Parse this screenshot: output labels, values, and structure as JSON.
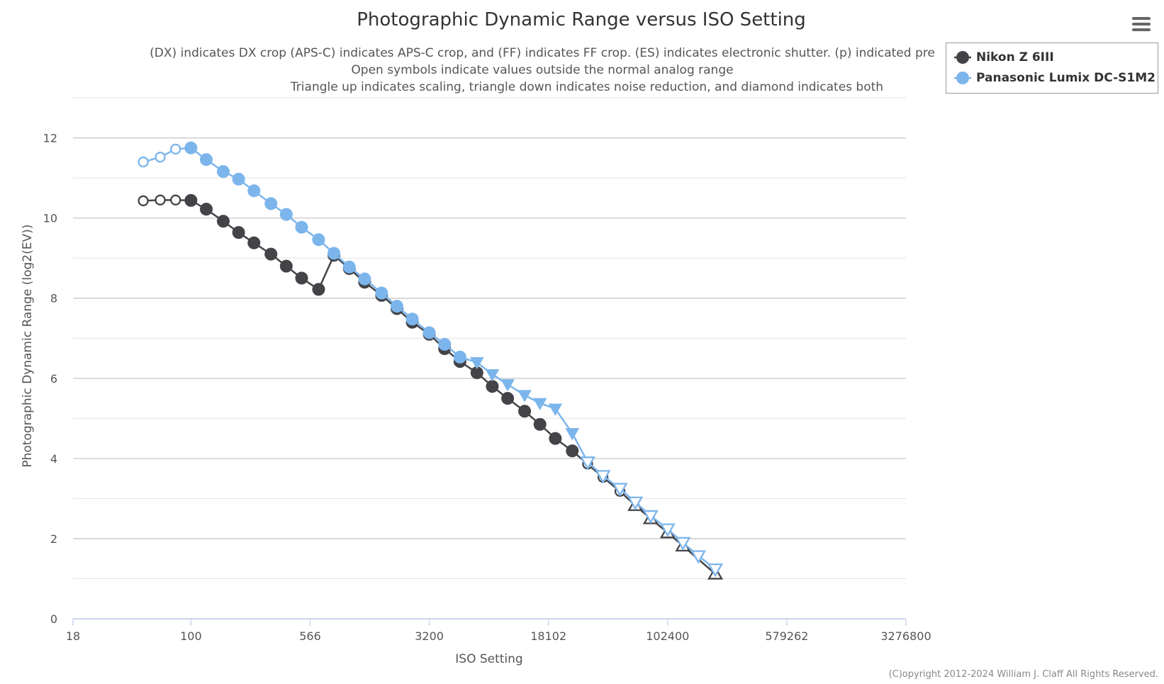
{
  "chart_data": {
    "type": "line",
    "title": "Photographic Dynamic Range versus ISO Setting",
    "subtitle_lines": [
      "(DX) indicates DX crop (APS-C) indicates APS-C crop, and (FF) indicates FF crop. (ES) indicates electronic shutter. (p) indicated pre",
      "Open symbols indicate values outside the normal analog range",
      "Triangle up indicates scaling, triangle down indicates noise reduction, and diamond indicates both"
    ],
    "xlabel": "ISO Setting",
    "ylabel": "Photographic Dynamic Range (log2(EV))",
    "x_scale": "log",
    "xlim": [
      18,
      3276800
    ],
    "x_ticks": [
      18,
      100,
      566,
      3200,
      18102,
      102400,
      579262,
      3276800
    ],
    "x_tick_labels": [
      "18",
      "100",
      "566",
      "3200",
      "18102",
      "102400",
      "579262",
      "3276800"
    ],
    "ylim": [
      0,
      13
    ],
    "y_ticks": [
      0,
      2,
      4,
      6,
      8,
      10,
      12
    ],
    "grid": true,
    "legend_position": "top-right",
    "series": [
      {
        "name": "Nikon Z 6III",
        "color": "#434348",
        "points": [
          {
            "x": 50,
            "y": 10.43,
            "m": "open"
          },
          {
            "x": 64,
            "y": 10.45,
            "m": "open"
          },
          {
            "x": 80,
            "y": 10.45,
            "m": "open"
          },
          {
            "x": 100,
            "y": 10.44,
            "m": "dot"
          },
          {
            "x": 125,
            "y": 10.22,
            "m": "dot"
          },
          {
            "x": 160,
            "y": 9.92,
            "m": "dot"
          },
          {
            "x": 200,
            "y": 9.64,
            "m": "dot"
          },
          {
            "x": 250,
            "y": 9.38,
            "m": "dot"
          },
          {
            "x": 320,
            "y": 9.1,
            "m": "dot"
          },
          {
            "x": 400,
            "y": 8.8,
            "m": "dot"
          },
          {
            "x": 500,
            "y": 8.5,
            "m": "dot"
          },
          {
            "x": 640,
            "y": 8.22,
            "m": "dot"
          },
          {
            "x": 800,
            "y": 9.07,
            "m": "dot"
          },
          {
            "x": 1000,
            "y": 8.74,
            "m": "dot"
          },
          {
            "x": 1250,
            "y": 8.4,
            "m": "dot"
          },
          {
            "x": 1600,
            "y": 8.07,
            "m": "dot"
          },
          {
            "x": 2000,
            "y": 7.74,
            "m": "dot"
          },
          {
            "x": 2500,
            "y": 7.4,
            "m": "dot"
          },
          {
            "x": 3200,
            "y": 7.1,
            "m": "dot"
          },
          {
            "x": 4000,
            "y": 6.74,
            "m": "dot"
          },
          {
            "x": 5000,
            "y": 6.42,
            "m": "dot"
          },
          {
            "x": 6400,
            "y": 6.14,
            "m": "dot"
          },
          {
            "x": 8000,
            "y": 5.8,
            "m": "dot"
          },
          {
            "x": 10000,
            "y": 5.5,
            "m": "dot"
          },
          {
            "x": 12800,
            "y": 5.18,
            "m": "dot"
          },
          {
            "x": 16000,
            "y": 4.85,
            "m": "dot"
          },
          {
            "x": 20000,
            "y": 4.5,
            "m": "dot"
          },
          {
            "x": 25600,
            "y": 4.19,
            "m": "dot"
          },
          {
            "x": 32000,
            "y": 3.86,
            "m": "open"
          },
          {
            "x": 40000,
            "y": 3.53,
            "m": "open"
          },
          {
            "x": 51200,
            "y": 3.18,
            "m": "open"
          },
          {
            "x": 64000,
            "y": 2.83,
            "m": "open-tri-up"
          },
          {
            "x": 80000,
            "y": 2.5,
            "m": "open-tri-up"
          },
          {
            "x": 102400,
            "y": 2.15,
            "m": "open-tri-up"
          },
          {
            "x": 128000,
            "y": 1.82,
            "m": "open-tri-up"
          },
          {
            "x": 204800,
            "y": 1.12,
            "m": "open-tri-up"
          }
        ]
      },
      {
        "name": "Panasonic Lumix DC-S1M2",
        "color": "#7cb5ec",
        "points": [
          {
            "x": 50,
            "y": 11.4,
            "m": "open"
          },
          {
            "x": 64,
            "y": 11.52,
            "m": "open"
          },
          {
            "x": 80,
            "y": 11.72,
            "m": "open"
          },
          {
            "x": 100,
            "y": 11.75,
            "m": "dot"
          },
          {
            "x": 125,
            "y": 11.46,
            "m": "dot"
          },
          {
            "x": 160,
            "y": 11.16,
            "m": "dot"
          },
          {
            "x": 200,
            "y": 10.97,
            "m": "dot"
          },
          {
            "x": 250,
            "y": 10.68,
            "m": "dot"
          },
          {
            "x": 320,
            "y": 10.36,
            "m": "dot"
          },
          {
            "x": 400,
            "y": 10.09,
            "m": "dot"
          },
          {
            "x": 500,
            "y": 9.77,
            "m": "dot"
          },
          {
            "x": 640,
            "y": 9.46,
            "m": "dot"
          },
          {
            "x": 800,
            "y": 9.12,
            "m": "dot"
          },
          {
            "x": 1000,
            "y": 8.78,
            "m": "dot"
          },
          {
            "x": 1250,
            "y": 8.48,
            "m": "dot"
          },
          {
            "x": 1600,
            "y": 8.13,
            "m": "dot"
          },
          {
            "x": 2000,
            "y": 7.8,
            "m": "dot"
          },
          {
            "x": 2500,
            "y": 7.48,
            "m": "dot"
          },
          {
            "x": 3200,
            "y": 7.14,
            "m": "dot"
          },
          {
            "x": 4000,
            "y": 6.85,
            "m": "dot"
          },
          {
            "x": 5000,
            "y": 6.53,
            "m": "dot"
          },
          {
            "x": 6400,
            "y": 6.4,
            "m": "tri-down"
          },
          {
            "x": 8000,
            "y": 6.1,
            "m": "tri-down"
          },
          {
            "x": 10000,
            "y": 5.85,
            "m": "tri-down"
          },
          {
            "x": 12800,
            "y": 5.58,
            "m": "tri-down"
          },
          {
            "x": 16000,
            "y": 5.38,
            "m": "tri-down"
          },
          {
            "x": 20000,
            "y": 5.24,
            "m": "tri-down"
          },
          {
            "x": 25600,
            "y": 4.63,
            "m": "tri-down"
          },
          {
            "x": 32000,
            "y": 3.91,
            "m": "open-tri-down"
          },
          {
            "x": 40000,
            "y": 3.57,
            "m": "open-tri-down"
          },
          {
            "x": 51200,
            "y": 3.25,
            "m": "open-tri-down"
          },
          {
            "x": 64000,
            "y": 2.91,
            "m": "open-tri-down"
          },
          {
            "x": 80000,
            "y": 2.57,
            "m": "open-tri-down"
          },
          {
            "x": 102400,
            "y": 2.24,
            "m": "open-tri-down"
          },
          {
            "x": 128000,
            "y": 1.9,
            "m": "open-tri-down"
          },
          {
            "x": 160000,
            "y": 1.57,
            "m": "open-tri-down"
          },
          {
            "x": 204800,
            "y": 1.24,
            "m": "open-tri-down"
          }
        ]
      }
    ]
  },
  "copyright": "(C)opyright 2012-2024 William J. Claff All Rights Reserved.",
  "menu_icon": "hamburger-menu-icon"
}
